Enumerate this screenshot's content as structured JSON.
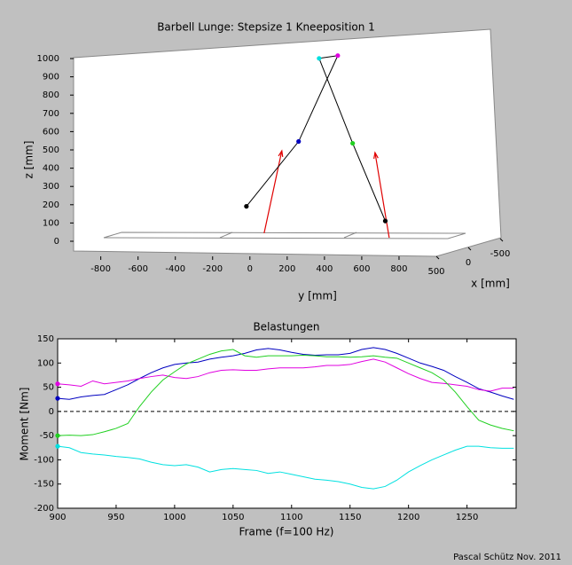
{
  "chart_data": [
    {
      "type": "skeleton3d",
      "title": "Barbell Lunge:  Stepsize  1  Kneeposition  1",
      "xlabel": "x [mm]",
      "ylabel": "y [mm]",
      "zlabel": "z [mm]",
      "xlim": [
        -500,
        500
      ],
      "xticks": [
        500,
        0,
        -500
      ],
      "ylim": [
        -960,
        1000
      ],
      "yticks": [
        -800,
        -600,
        -400,
        -200,
        0,
        200,
        400,
        600,
        800
      ],
      "zlim": [
        0,
        1000
      ],
      "zticks": [
        0,
        100,
        200,
        300,
        400,
        500,
        600,
        700,
        800,
        900,
        1000
      ],
      "line_color": "#000000",
      "points": [
        {
          "x": 0,
          "y": -190,
          "z": 225,
          "color": "#000000"
        },
        {
          "x": 0,
          "y": 90,
          "z": 580,
          "color": "#0000c0"
        },
        {
          "x": 0,
          "y": 300,
          "z": 1050,
          "color": "#e000e0"
        },
        {
          "x": 0,
          "y": 200,
          "z": 1035,
          "color": "#00e0e0"
        },
        {
          "x": 0,
          "y": 380,
          "z": 570,
          "color": "#20d020"
        },
        {
          "x": 0,
          "y": 555,
          "z": 145,
          "color": "#000000"
        }
      ],
      "force_color": "#e00000",
      "forces": [
        {
          "start": {
            "x": 0,
            "y": -95,
            "z": 78
          },
          "end": {
            "x": 0,
            "y": 0,
            "z": 529
          }
        },
        {
          "start": {
            "x": 0,
            "y": 576,
            "z": 53
          },
          "end": {
            "x": 0,
            "y": 500,
            "z": 519
          }
        }
      ]
    },
    {
      "type": "line",
      "title": "Belastungen",
      "xlabel": "Frame  (f=100 Hz)",
      "ylabel": "Moment [Nm]",
      "xlim": [
        900,
        1292
      ],
      "xticks": [
        900,
        950,
        1000,
        1050,
        1100,
        1150,
        1200,
        1250
      ],
      "ylim": [
        -200,
        150
      ],
      "yticks": [
        -200,
        -150,
        -100,
        -50,
        0,
        50,
        100,
        150
      ],
      "reference_line": 0,
      "x": [
        900,
        910,
        920,
        930,
        940,
        950,
        960,
        970,
        980,
        990,
        1000,
        1010,
        1020,
        1030,
        1040,
        1050,
        1060,
        1070,
        1080,
        1090,
        1100,
        1110,
        1120,
        1130,
        1140,
        1150,
        1160,
        1170,
        1180,
        1190,
        1200,
        1210,
        1220,
        1230,
        1240,
        1250,
        1260,
        1270,
        1280,
        1290
      ],
      "series": [
        {
          "color": "#0000c0",
          "values": [
            27,
            25,
            30,
            33,
            35,
            45,
            55,
            68,
            80,
            90,
            97,
            100,
            102,
            108,
            112,
            115,
            120,
            127,
            130,
            127,
            122,
            118,
            116,
            117,
            117,
            120,
            128,
            132,
            128,
            120,
            110,
            100,
            93,
            85,
            72,
            60,
            47,
            40,
            32,
            25
          ]
        },
        {
          "color": "#e000e0",
          "values": [
            57,
            55,
            52,
            63,
            57,
            60,
            63,
            68,
            72,
            75,
            70,
            68,
            72,
            80,
            85,
            86,
            85,
            85,
            88,
            90,
            90,
            90,
            92,
            95,
            95,
            97,
            103,
            108,
            102,
            90,
            78,
            68,
            60,
            58,
            55,
            52,
            45,
            42,
            48,
            48
          ]
        },
        {
          "color": "#20d020",
          "values": [
            -50,
            -49,
            -50,
            -48,
            -42,
            -35,
            -25,
            10,
            40,
            65,
            82,
            98,
            108,
            118,
            125,
            128,
            115,
            112,
            115,
            115,
            115,
            116,
            115,
            113,
            113,
            112,
            113,
            115,
            112,
            110,
            100,
            90,
            80,
            65,
            40,
            10,
            -18,
            -28,
            -35,
            -40
          ]
        },
        {
          "color": "#00e0e0",
          "values": [
            -72,
            -75,
            -85,
            -88,
            -90,
            -93,
            -95,
            -98,
            -105,
            -110,
            -112,
            -110,
            -115,
            -125,
            -120,
            -118,
            -120,
            -122,
            -128,
            -125,
            -130,
            -135,
            -140,
            -142,
            -145,
            -150,
            -157,
            -160,
            -155,
            -142,
            -125,
            -112,
            -100,
            -90,
            -80,
            -72,
            -72,
            -75,
            -76,
            -76
          ]
        }
      ]
    }
  ],
  "footer": "Pascal Schütz Nov. 2011"
}
